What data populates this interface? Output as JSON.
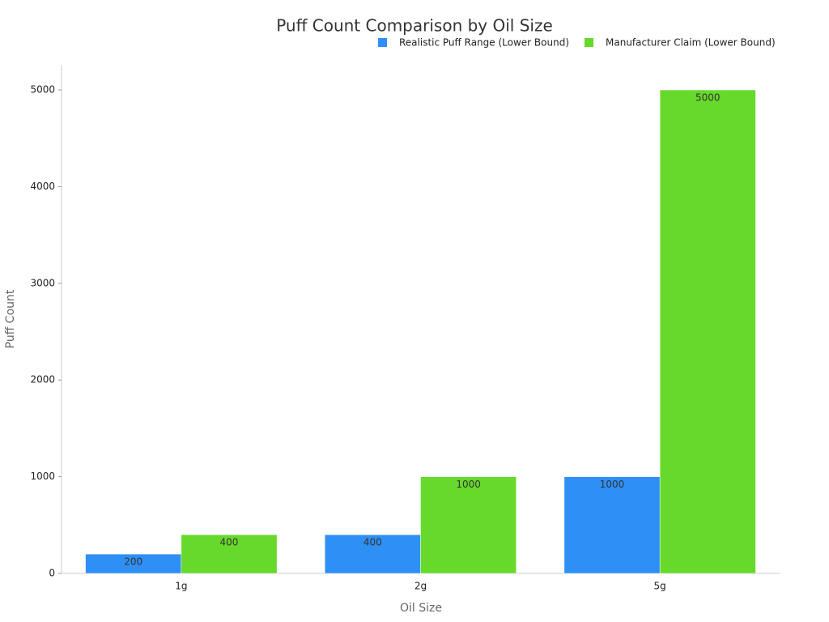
{
  "chart_data": {
    "type": "bar",
    "title": "Puff Count Comparison by Oil Size",
    "x_label": "Oil Size",
    "y_label": "Puff Count",
    "categories": [
      "1g",
      "2g",
      "5g"
    ],
    "series": [
      {
        "name": "Realistic Puff Range (Lower Bound)",
        "color": "#2e8ff5",
        "values": [
          200,
          400,
          1000
        ]
      },
      {
        "name": "Manufacturer Claim (Lower Bound)",
        "color": "#66d92a",
        "values": [
          400,
          1000,
          5000
        ]
      }
    ],
    "ylim": [
      0,
      5260
    ],
    "yticks": [
      0,
      1000,
      2000,
      3000,
      4000,
      5000
    ],
    "grid": false
  }
}
